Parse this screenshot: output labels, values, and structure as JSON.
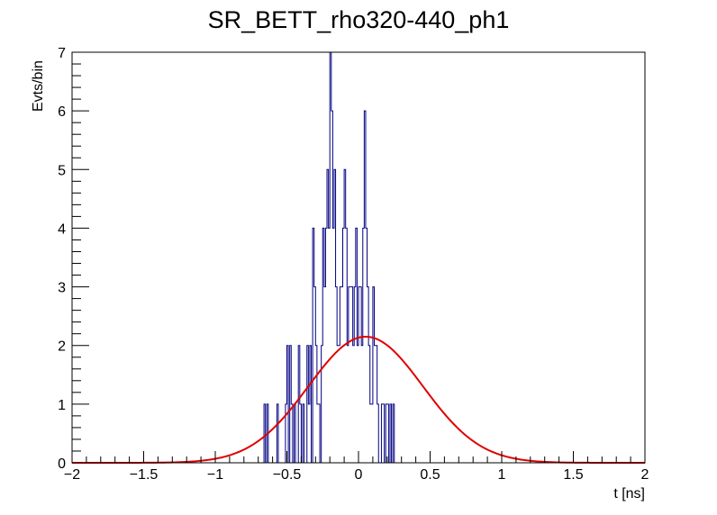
{
  "chart_data": {
    "type": "histogram",
    "title": "SR_BETT_rho320-440_ph1",
    "xlabel": "t [ns]",
    "ylabel": "Evts/bin",
    "xlim": [
      -2,
      2
    ],
    "ylim": [
      0,
      7
    ],
    "x_ticks": [
      -2,
      -1.5,
      -1,
      -0.5,
      0,
      0.5,
      1,
      1.5,
      2
    ],
    "x_tick_labels": [
      "−2",
      "−1.5",
      "−1",
      "−0.5",
      "0",
      "0.5",
      "1",
      "1.5",
      "2"
    ],
    "y_ticks": [
      0,
      1,
      2,
      3,
      4,
      5,
      6,
      7
    ],
    "y_tick_labels": [
      "0",
      "1",
      "2",
      "3",
      "4",
      "5",
      "6",
      "7"
    ],
    "grid": false,
    "histogram": {
      "color": "#000080",
      "bin_width": 0.01,
      "bin_starts": [
        -0.66,
        -0.65,
        -0.64,
        -0.63,
        -0.62,
        -0.61,
        -0.6,
        -0.59,
        -0.58,
        -0.57,
        -0.56,
        -0.55,
        -0.54,
        -0.53,
        -0.52,
        -0.51,
        -0.5,
        -0.49,
        -0.48,
        -0.47,
        -0.46,
        -0.45,
        -0.44,
        -0.43,
        -0.42,
        -0.41,
        -0.4,
        -0.39,
        -0.38,
        -0.37,
        -0.36,
        -0.35,
        -0.34,
        -0.33,
        -0.32,
        -0.31,
        -0.3,
        -0.29,
        -0.28,
        -0.27,
        -0.26,
        -0.25,
        -0.24,
        -0.23,
        -0.22,
        -0.21,
        -0.2,
        -0.19,
        -0.18,
        -0.17,
        -0.16,
        -0.15,
        -0.14,
        -0.13,
        -0.12,
        -0.11,
        -0.1,
        -0.09,
        -0.08,
        -0.07,
        -0.06,
        -0.05,
        -0.04,
        -0.03,
        -0.02,
        -0.01,
        0.0,
        0.01,
        0.02,
        0.03,
        0.04,
        0.05,
        0.06,
        0.07,
        0.08,
        0.09,
        0.1,
        0.11,
        0.12,
        0.13,
        0.14,
        0.15,
        0.16,
        0.17,
        0.18,
        0.19,
        0.2,
        0.21,
        0.22,
        0.23,
        0.24,
        0.25,
        0.26,
        0.27,
        0.28,
        0.29,
        0.3,
        0.31,
        0.32,
        0.33,
        0.34,
        0.35,
        0.36,
        0.37,
        0.38,
        0.39,
        0.4,
        0.41,
        0.42,
        0.43,
        0.44,
        0.45,
        0.46,
        0.47,
        0.48,
        0.49,
        0.5,
        0.51,
        0.52,
        0.53,
        0.54,
        0.55,
        0.56,
        0.57,
        0.58,
        0.59
      ],
      "counts": [
        1,
        0,
        1,
        0,
        0,
        0,
        0,
        0,
        0,
        1,
        0,
        0,
        0,
        0,
        0,
        1,
        2,
        0,
        2,
        1,
        0,
        1,
        0,
        0,
        2,
        1,
        0,
        1,
        0,
        0,
        2,
        1,
        2,
        0,
        4,
        3,
        2,
        1,
        1,
        0,
        2,
        4,
        3,
        4,
        5,
        4,
        7,
        6,
        4,
        5,
        3,
        2,
        2,
        3,
        3,
        4,
        5,
        4,
        2,
        3,
        3,
        3,
        2,
        3,
        4,
        2,
        3,
        3,
        2,
        4,
        6,
        4,
        3,
        2,
        1,
        1,
        3,
        2,
        2,
        1,
        0,
        0,
        1,
        1,
        0,
        1,
        1,
        0,
        1,
        0,
        1,
        0,
        0,
        0,
        0,
        0,
        0,
        0,
        0,
        0,
        0,
        0,
        0,
        0,
        0,
        0,
        0,
        0,
        0,
        0,
        0,
        0,
        0,
        0,
        0,
        0,
        0,
        0,
        0,
        0,
        0,
        0,
        0,
        0,
        0,
        0,
        0,
        0,
        0,
        0,
        0,
        0
      ]
    },
    "fit_curve": {
      "color": "#e00000",
      "function": "gaussian",
      "amplitude": 2.15,
      "mean": 0.05,
      "sigma": 0.4
    }
  }
}
